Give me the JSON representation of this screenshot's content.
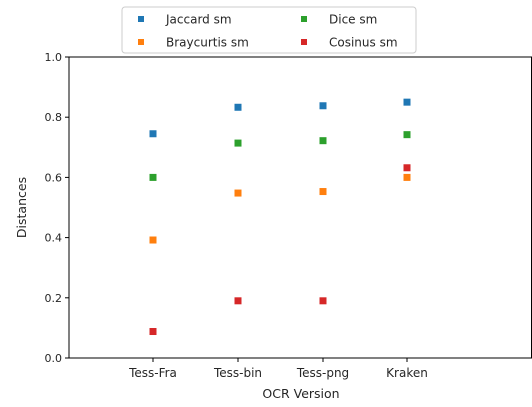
{
  "chart_data": {
    "type": "scatter",
    "title": "",
    "xlabel": "OCR Version",
    "ylabel": "Distances",
    "categories": [
      "Tess-Fra",
      "Tess-bin",
      "Tess-png",
      "Kraken"
    ],
    "ylim": [
      0.0,
      1.0
    ],
    "yticks": [
      "0.0",
      "0.2",
      "0.4",
      "0.6",
      "0.8",
      "1.0"
    ],
    "grid": false,
    "legend_position": "top-center",
    "series": [
      {
        "name": "Jaccard sm",
        "color": "#1f77b4",
        "values": [
          0.745,
          0.833,
          0.838,
          0.85
        ]
      },
      {
        "name": "Braycurtis sm",
        "color": "#ff7f0e",
        "values": [
          0.392,
          0.548,
          0.553,
          0.6
        ]
      },
      {
        "name": "Dice sm",
        "color": "#2ca02c",
        "values": [
          0.6,
          0.714,
          0.722,
          0.742
        ]
      },
      {
        "name": "Cosinus sm",
        "color": "#d62728",
        "values": [
          0.088,
          0.19,
          0.19,
          0.632
        ]
      }
    ]
  }
}
